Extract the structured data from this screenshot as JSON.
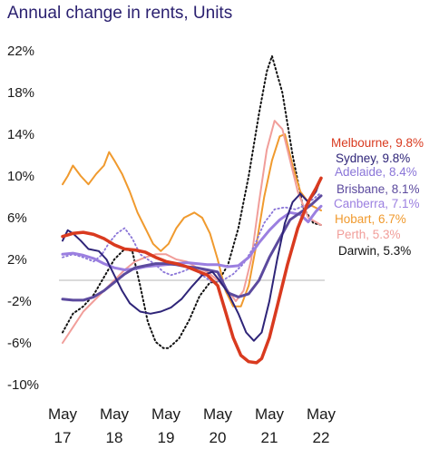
{
  "chart_data": {
    "type": "line",
    "title": "Annual change in rents, Units",
    "xlabel": "",
    "ylabel": "",
    "ylim": [
      -10,
      22
    ],
    "y_ticks": [
      "22%",
      "18%",
      "14%",
      "10%",
      "6%",
      "2%",
      "-2%",
      "-6%",
      "-10%"
    ],
    "y_tick_values": [
      22,
      18,
      14,
      10,
      6,
      2,
      -2,
      -6,
      -10
    ],
    "x_ticks": [
      {
        "month": "May",
        "year": "17",
        "t": 0
      },
      {
        "month": "May",
        "year": "18",
        "t": 1
      },
      {
        "month": "May",
        "year": "19",
        "t": 2
      },
      {
        "month": "May",
        "year": "20",
        "t": 3
      },
      {
        "month": "May",
        "year": "21",
        "t": 4
      },
      {
        "month": "May",
        "year": "22",
        "t": 5
      }
    ],
    "reference_line": 0,
    "legend_position": "right",
    "series": [
      {
        "name": "Darwin",
        "label": "Darwin, 5.3%",
        "color": "#111111",
        "dash": "dotted",
        "width": 2.0,
        "points": [
          [
            0,
            -5
          ],
          [
            0.2,
            -3.2
          ],
          [
            0.4,
            -2.5
          ],
          [
            0.6,
            -1.4
          ],
          [
            0.8,
            0.3
          ],
          [
            1.0,
            2.0
          ],
          [
            1.2,
            3.0
          ],
          [
            1.35,
            2.8
          ],
          [
            1.5,
            -0.5
          ],
          [
            1.65,
            -4.0
          ],
          [
            1.8,
            -5.9
          ],
          [
            1.95,
            -6.5
          ],
          [
            2.05,
            -6.5
          ],
          [
            2.25,
            -5.6
          ],
          [
            2.45,
            -3.8
          ],
          [
            2.65,
            -1.5
          ],
          [
            2.85,
            -0.2
          ],
          [
            3.0,
            -0.2
          ],
          [
            3.2,
            1.5
          ],
          [
            3.4,
            5.0
          ],
          [
            3.6,
            10
          ],
          [
            3.8,
            16
          ],
          [
            3.95,
            20
          ],
          [
            4.05,
            21.5
          ],
          [
            4.25,
            18
          ],
          [
            4.45,
            12
          ],
          [
            4.65,
            7
          ],
          [
            4.85,
            5.5
          ],
          [
            5.0,
            5.3
          ]
        ]
      },
      {
        "name": "Hobart",
        "label": "Hobart, 6.7%",
        "color": "#f09a2e",
        "dash": "",
        "width": 2.0,
        "points": [
          [
            0,
            9.2
          ],
          [
            0.1,
            10.0
          ],
          [
            0.2,
            11.0
          ],
          [
            0.35,
            10.0
          ],
          [
            0.5,
            9.2
          ],
          [
            0.65,
            10.2
          ],
          [
            0.8,
            11.0
          ],
          [
            0.9,
            12.3
          ],
          [
            1.0,
            11.5
          ],
          [
            1.15,
            10.2
          ],
          [
            1.3,
            8.5
          ],
          [
            1.45,
            6.5
          ],
          [
            1.6,
            5.0
          ],
          [
            1.75,
            3.5
          ],
          [
            1.9,
            2.8
          ],
          [
            2.05,
            3.5
          ],
          [
            2.2,
            5.0
          ],
          [
            2.35,
            6.0
          ],
          [
            2.55,
            6.5
          ],
          [
            2.7,
            6.0
          ],
          [
            2.85,
            4.5
          ],
          [
            3.0,
            2.0
          ],
          [
            3.15,
            -1.0
          ],
          [
            3.3,
            -2.5
          ],
          [
            3.45,
            -2.5
          ],
          [
            3.6,
            -0.5
          ],
          [
            3.75,
            3.5
          ],
          [
            3.9,
            8.0
          ],
          [
            4.05,
            11.5
          ],
          [
            4.2,
            13.8
          ],
          [
            4.3,
            14.0
          ],
          [
            4.45,
            11.0
          ],
          [
            4.6,
            8.5
          ],
          [
            4.8,
            7.2
          ],
          [
            5.0,
            6.7
          ]
        ]
      },
      {
        "name": "Perth",
        "label": "Perth, 5.3%",
        "color": "#f19e9a",
        "dash": "",
        "width": 2.0,
        "points": [
          [
            0,
            -6.0
          ],
          [
            0.2,
            -4.5
          ],
          [
            0.4,
            -3.0
          ],
          [
            0.6,
            -2.0
          ],
          [
            0.8,
            -1.0
          ],
          [
            1.0,
            0.0
          ],
          [
            1.2,
            1.0
          ],
          [
            1.4,
            1.8
          ],
          [
            1.6,
            2.2
          ],
          [
            1.8,
            2.5
          ],
          [
            2.0,
            2.5
          ],
          [
            2.2,
            2.0
          ],
          [
            2.4,
            1.8
          ],
          [
            2.6,
            1.2
          ],
          [
            2.8,
            0.8
          ],
          [
            3.0,
            0.0
          ],
          [
            3.2,
            -1.0
          ],
          [
            3.35,
            -2.0
          ],
          [
            3.5,
            -1.0
          ],
          [
            3.65,
            2.0
          ],
          [
            3.8,
            7.5
          ],
          [
            3.95,
            12.5
          ],
          [
            4.1,
            15.3
          ],
          [
            4.25,
            14.5
          ],
          [
            4.4,
            11.5
          ],
          [
            4.55,
            8.5
          ],
          [
            4.75,
            6.0
          ],
          [
            5.0,
            5.3
          ]
        ]
      },
      {
        "name": "Adelaide",
        "label": "Adelaide, 8.4%",
        "color": "#8a75d8",
        "dash": "dotted",
        "width": 1.8,
        "points": [
          [
            0,
            2.2
          ],
          [
            0.2,
            2.5
          ],
          [
            0.4,
            2.2
          ],
          [
            0.6,
            1.8
          ],
          [
            0.75,
            2.4
          ],
          [
            0.9,
            3.6
          ],
          [
            1.05,
            4.5
          ],
          [
            1.2,
            5.0
          ],
          [
            1.35,
            4.0
          ],
          [
            1.5,
            2.5
          ],
          [
            1.65,
            2.0
          ],
          [
            1.8,
            1.5
          ],
          [
            1.95,
            0.8
          ],
          [
            2.1,
            0.5
          ],
          [
            2.3,
            0.8
          ],
          [
            2.5,
            1.2
          ],
          [
            2.7,
            0.5
          ],
          [
            2.9,
            -0.2
          ],
          [
            3.1,
            0.0
          ],
          [
            3.3,
            0.6
          ],
          [
            3.5,
            1.6
          ],
          [
            3.7,
            3.2
          ],
          [
            3.9,
            5.5
          ],
          [
            4.1,
            6.8
          ],
          [
            4.3,
            7.0
          ],
          [
            4.5,
            6.8
          ],
          [
            4.7,
            7.2
          ],
          [
            4.9,
            8.0
          ],
          [
            5.0,
            8.4
          ]
        ]
      },
      {
        "name": "Canberra",
        "label": "Canberra, 7.1%",
        "color": "#9b7fe0",
        "dash": "",
        "width": 3.0,
        "points": [
          [
            0,
            2.5
          ],
          [
            0.2,
            2.6
          ],
          [
            0.4,
            2.4
          ],
          [
            0.6,
            2.1
          ],
          [
            0.8,
            1.6
          ],
          [
            1.0,
            1.2
          ],
          [
            1.2,
            1.0
          ],
          [
            1.4,
            1.1
          ],
          [
            1.6,
            1.3
          ],
          [
            1.8,
            1.4
          ],
          [
            2.0,
            1.5
          ],
          [
            2.2,
            1.6
          ],
          [
            2.4,
            1.7
          ],
          [
            2.6,
            1.6
          ],
          [
            2.8,
            1.5
          ],
          [
            3.0,
            1.5
          ],
          [
            3.2,
            1.3
          ],
          [
            3.4,
            1.4
          ],
          [
            3.6,
            2.2
          ],
          [
            3.8,
            3.6
          ],
          [
            4.0,
            4.8
          ],
          [
            4.2,
            5.8
          ],
          [
            4.4,
            6.5
          ],
          [
            4.6,
            6.3
          ],
          [
            4.75,
            5.6
          ],
          [
            4.9,
            6.6
          ],
          [
            5.0,
            7.1
          ]
        ]
      },
      {
        "name": "Brisbane",
        "label": "Brisbane, 8.1%",
        "color": "#5c4a9e",
        "dash": "",
        "width": 3.0,
        "points": [
          [
            0,
            -1.8
          ],
          [
            0.2,
            -1.9
          ],
          [
            0.4,
            -1.9
          ],
          [
            0.6,
            -1.6
          ],
          [
            0.8,
            -1.0
          ],
          [
            1.0,
            -0.2
          ],
          [
            1.2,
            0.6
          ],
          [
            1.4,
            1.2
          ],
          [
            1.6,
            1.4
          ],
          [
            1.8,
            1.6
          ],
          [
            2.0,
            1.6
          ],
          [
            2.2,
            1.5
          ],
          [
            2.4,
            1.3
          ],
          [
            2.6,
            1.2
          ],
          [
            2.8,
            1.0
          ],
          [
            3.0,
            0.8
          ],
          [
            3.2,
            -1.2
          ],
          [
            3.4,
            -1.6
          ],
          [
            3.6,
            -1.3
          ],
          [
            3.8,
            0.0
          ],
          [
            4.0,
            2.2
          ],
          [
            4.2,
            4.0
          ],
          [
            4.4,
            5.8
          ],
          [
            4.6,
            6.5
          ],
          [
            4.8,
            7.2
          ],
          [
            5.0,
            8.1
          ]
        ]
      },
      {
        "name": "Sydney",
        "label": "Sydney, 9.8%",
        "color": "#2e2478",
        "dash": "",
        "width": 2.0,
        "points": [
          [
            0,
            3.8
          ],
          [
            0.1,
            4.8
          ],
          [
            0.2,
            4.5
          ],
          [
            0.35,
            3.8
          ],
          [
            0.5,
            3.0
          ],
          [
            0.7,
            2.8
          ],
          [
            0.85,
            2.0
          ],
          [
            1.0,
            0.5
          ],
          [
            1.15,
            -1.0
          ],
          [
            1.3,
            -2.2
          ],
          [
            1.5,
            -3.0
          ],
          [
            1.7,
            -3.2
          ],
          [
            1.9,
            -3.0
          ],
          [
            2.1,
            -2.6
          ],
          [
            2.3,
            -1.8
          ],
          [
            2.5,
            -0.6
          ],
          [
            2.7,
            0.5
          ],
          [
            2.9,
            0.8
          ],
          [
            3.0,
            0.2
          ],
          [
            3.2,
            -1.2
          ],
          [
            3.4,
            -3.2
          ],
          [
            3.55,
            -5.0
          ],
          [
            3.7,
            -5.8
          ],
          [
            3.85,
            -5.0
          ],
          [
            4.0,
            -2.0
          ],
          [
            4.15,
            2.0
          ],
          [
            4.3,
            5.5
          ],
          [
            4.45,
            7.5
          ],
          [
            4.6,
            8.3
          ],
          [
            4.75,
            7.5
          ],
          [
            4.9,
            8.5
          ],
          [
            5.0,
            9.8
          ]
        ]
      },
      {
        "name": "Melbourne",
        "label": "Melbourne, 9.8%",
        "color": "#d93a1f",
        "dash": "",
        "width": 3.5,
        "points": [
          [
            0,
            4.2
          ],
          [
            0.2,
            4.5
          ],
          [
            0.4,
            4.6
          ],
          [
            0.6,
            4.4
          ],
          [
            0.8,
            4.0
          ],
          [
            1.0,
            3.4
          ],
          [
            1.2,
            3.0
          ],
          [
            1.4,
            2.9
          ],
          [
            1.6,
            2.7
          ],
          [
            1.8,
            2.2
          ],
          [
            2.0,
            1.8
          ],
          [
            2.2,
            1.6
          ],
          [
            2.4,
            1.3
          ],
          [
            2.6,
            0.9
          ],
          [
            2.8,
            0.5
          ],
          [
            3.0,
            -0.5
          ],
          [
            3.15,
            -3.0
          ],
          [
            3.3,
            -5.5
          ],
          [
            3.45,
            -7.2
          ],
          [
            3.6,
            -7.8
          ],
          [
            3.75,
            -7.9
          ],
          [
            3.85,
            -7.5
          ],
          [
            4.0,
            -5.5
          ],
          [
            4.15,
            -2.5
          ],
          [
            4.35,
            1.5
          ],
          [
            4.55,
            5.0
          ],
          [
            4.75,
            7.5
          ],
          [
            4.9,
            8.8
          ],
          [
            5.0,
            9.8
          ]
        ]
      }
    ]
  }
}
